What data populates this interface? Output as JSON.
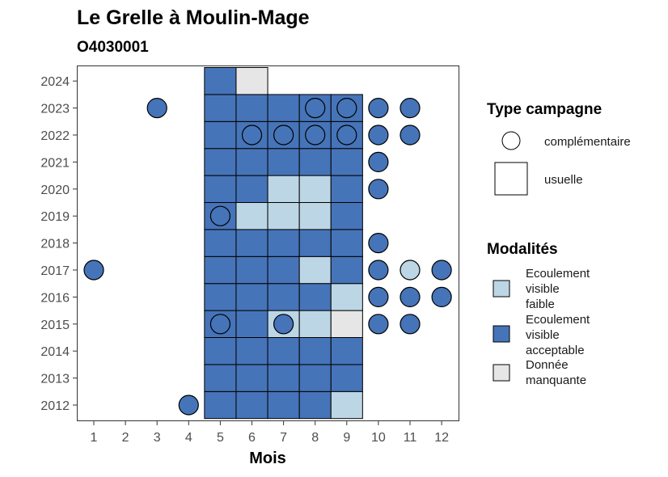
{
  "chart_data": {
    "type": "heatmap",
    "title": "Le Grelle à Moulin-Mage",
    "subtitle": "O4030001",
    "xlabel": "Mois",
    "ylabel": "",
    "x_ticks": [
      1,
      2,
      3,
      4,
      5,
      6,
      7,
      8,
      9,
      10,
      11,
      12
    ],
    "y_ticks": [
      2012,
      2013,
      2014,
      2015,
      2016,
      2017,
      2018,
      2019,
      2020,
      2021,
      2022,
      2023,
      2024
    ],
    "xlim": [
      1,
      12
    ],
    "ylim": [
      2012,
      2024
    ],
    "grid": false,
    "colors": {
      "Ecoulement visible faible": "#bcd6e6",
      "Ecoulement visible acceptable": "#4674b8",
      "Donnée manquante": "#e6e6e6"
    },
    "legend_type": {
      "title": "Type campagne",
      "items": [
        {
          "label": "complémentaire",
          "shape": "circle"
        },
        {
          "label": "usuelle",
          "shape": "square"
        }
      ]
    },
    "legend_modalites": {
      "title": "Modalités",
      "items": [
        {
          "lines": [
            "Ecoulement",
            "visible",
            "faible"
          ],
          "color_key": "Ecoulement visible faible"
        },
        {
          "lines": [
            "Ecoulement",
            "visible",
            "acceptable"
          ],
          "color_key": "Ecoulement visible acceptable"
        },
        {
          "lines": [
            "Donnée",
            "manquante"
          ],
          "color_key": "Donnée manquante"
        }
      ]
    },
    "usuelle": [
      {
        "year": 2012,
        "months": [
          "A",
          "A",
          "A",
          "A",
          "F"
        ]
      },
      {
        "year": 2013,
        "months": [
          "A",
          "A",
          "A",
          "A",
          "A"
        ]
      },
      {
        "year": 2014,
        "months": [
          "A",
          "A",
          "A",
          "A",
          "A"
        ]
      },
      {
        "year": 2015,
        "months": [
          "A",
          "A",
          "F",
          "F",
          "M"
        ]
      },
      {
        "year": 2016,
        "months": [
          "A",
          "A",
          "A",
          "A",
          "F"
        ]
      },
      {
        "year": 2017,
        "months": [
          "A",
          "A",
          "A",
          "F",
          "A"
        ]
      },
      {
        "year": 2018,
        "months": [
          "A",
          "A",
          "A",
          "A",
          "A"
        ]
      },
      {
        "year": 2019,
        "months": [
          "A",
          "F",
          "F",
          "F",
          "A"
        ]
      },
      {
        "year": 2020,
        "months": [
          "A",
          "A",
          "F",
          "F",
          "A"
        ]
      },
      {
        "year": 2021,
        "months": [
          "A",
          "A",
          "A",
          "A",
          "A"
        ]
      },
      {
        "year": 2022,
        "months": [
          "A",
          "A",
          "A",
          "A",
          "A"
        ]
      },
      {
        "year": 2023,
        "months": [
          "A",
          "A",
          "A",
          "A",
          "A"
        ]
      },
      {
        "year": 2024,
        "months": [
          "A",
          "M",
          null,
          null,
          null
        ]
      }
    ],
    "usuelle_month_start": 5,
    "modalite_codes": {
      "F": "Ecoulement visible faible",
      "A": "Ecoulement visible acceptable",
      "M": "Donnée manquante"
    },
    "complementaire": [
      {
        "month": 3,
        "year": 2023,
        "modalite": "A"
      },
      {
        "month": 8,
        "year": 2023,
        "modalite": "A"
      },
      {
        "month": 9,
        "year": 2023,
        "modalite": "A"
      },
      {
        "month": 10,
        "year": 2023,
        "modalite": "A"
      },
      {
        "month": 11,
        "year": 2023,
        "modalite": "A"
      },
      {
        "month": 6,
        "year": 2022,
        "modalite": "A"
      },
      {
        "month": 7,
        "year": 2022,
        "modalite": "A"
      },
      {
        "month": 8,
        "year": 2022,
        "modalite": "A"
      },
      {
        "month": 9,
        "year": 2022,
        "modalite": "A"
      },
      {
        "month": 10,
        "year": 2022,
        "modalite": "A"
      },
      {
        "month": 11,
        "year": 2022,
        "modalite": "A"
      },
      {
        "month": 10,
        "year": 2021,
        "modalite": "A"
      },
      {
        "month": 10,
        "year": 2020,
        "modalite": "A"
      },
      {
        "month": 5,
        "year": 2019,
        "modalite": "A"
      },
      {
        "month": 10,
        "year": 2018,
        "modalite": "A"
      },
      {
        "month": 1,
        "year": 2017,
        "modalite": "A"
      },
      {
        "month": 10,
        "year": 2017,
        "modalite": "A"
      },
      {
        "month": 11,
        "year": 2017,
        "modalite": "F"
      },
      {
        "month": 12,
        "year": 2017,
        "modalite": "A"
      },
      {
        "month": 10,
        "year": 2016,
        "modalite": "A"
      },
      {
        "month": 11,
        "year": 2016,
        "modalite": "A"
      },
      {
        "month": 12,
        "year": 2016,
        "modalite": "A"
      },
      {
        "month": 5,
        "year": 2015,
        "modalite": "A"
      },
      {
        "month": 7,
        "year": 2015,
        "modalite": "A"
      },
      {
        "month": 10,
        "year": 2015,
        "modalite": "A"
      },
      {
        "month": 11,
        "year": 2015,
        "modalite": "A"
      },
      {
        "month": 4,
        "year": 2012,
        "modalite": "A"
      }
    ]
  }
}
